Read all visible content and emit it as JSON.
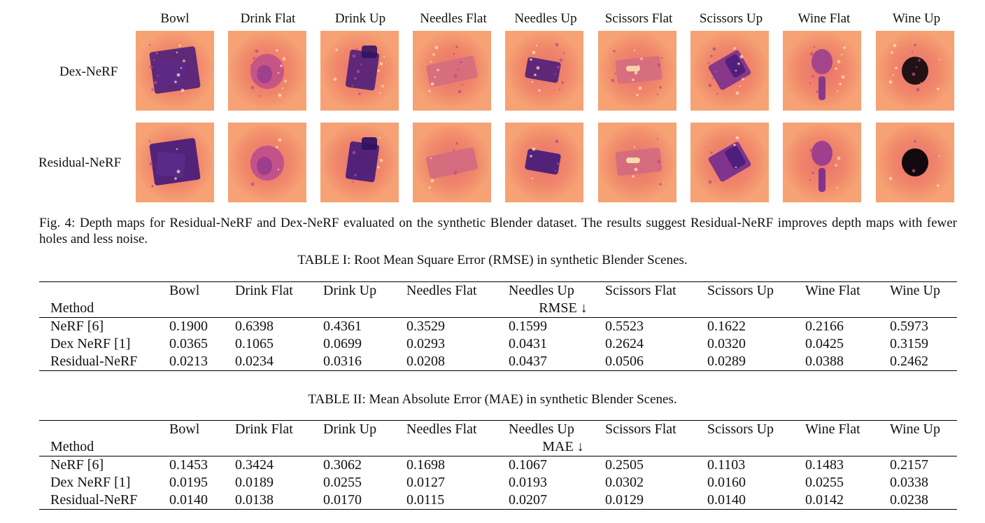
{
  "figure": {
    "scenes": [
      "Bowl",
      "Drink Flat",
      "Drink Up",
      "Needles Flat",
      "Needles Up",
      "Scissors Flat",
      "Scissors Up",
      "Wine Flat",
      "Wine Up"
    ],
    "rows": [
      "Dex-NeRF",
      "Residual-NeRF"
    ],
    "colors": {
      "background": "#f0876a",
      "mid": "#c0508a",
      "deep": "#4a1d7a",
      "hole": "#050308",
      "highlight": "#fbe0b0"
    },
    "caption": "Fig. 4: Depth maps for Residual-NeRF and Dex-NeRF evaluated on the synthetic Blender dataset. The results suggest Residual-NeRF improves depth maps with fewer holes and less noise."
  },
  "table1": {
    "caption": "TABLE I: Root Mean Square Error (RMSE) in synthetic Blender Scenes.",
    "method_header": "Method",
    "metric_label": "RMSE ↓",
    "columns": [
      "Bowl",
      "Drink Flat",
      "Drink Up",
      "Needles Flat",
      "Needles Up",
      "Scissors Flat",
      "Scissors Up",
      "Wine Flat",
      "Wine Up"
    ],
    "rows": [
      {
        "method": "NeRF [6]",
        "values": [
          "0.1900",
          "0.6398",
          "0.4361",
          "0.3529",
          "0.1599",
          "0.5523",
          "0.1622",
          "0.2166",
          "0.5973"
        ],
        "bold": [
          false,
          false,
          false,
          false,
          false,
          false,
          false,
          false,
          false
        ]
      },
      {
        "method": "Dex NeRF [1]",
        "values": [
          "0.0365",
          "0.1065",
          "0.0699",
          "0.0293",
          "0.0431",
          "0.2624",
          "0.0320",
          "0.0425",
          "0.3159"
        ],
        "bold": [
          false,
          false,
          false,
          false,
          true,
          false,
          false,
          false,
          false
        ]
      },
      {
        "method": "Residual-NeRF",
        "values": [
          "0.0213",
          "0.0234",
          "0.0316",
          "0.0208",
          "0.0437",
          "0.0506",
          "0.0289",
          "0.0388",
          "0.2462"
        ],
        "bold": [
          true,
          true,
          true,
          true,
          false,
          true,
          true,
          true,
          true
        ]
      }
    ]
  },
  "table2": {
    "caption": "TABLE II: Mean Absolute Error (MAE) in synthetic Blender Scenes.",
    "method_header": "Method",
    "metric_label": "MAE ↓",
    "columns": [
      "Bowl",
      "Drink Flat",
      "Drink Up",
      "Needles Flat",
      "Needles Up",
      "Scissors Flat",
      "Scissors Up",
      "Wine Flat",
      "Wine Up"
    ],
    "rows": [
      {
        "method": "NeRF [6]",
        "values": [
          "0.1453",
          "0.3424",
          "0.3062",
          "0.1698",
          "0.1067",
          "0.2505",
          "0.1103",
          "0.1483",
          "0.2157"
        ],
        "bold": [
          false,
          false,
          false,
          false,
          false,
          false,
          false,
          false,
          false
        ]
      },
      {
        "method": "Dex NeRF [1]",
        "values": [
          "0.0195",
          "0.0189",
          "0.0255",
          "0.0127",
          "0.0193",
          "0.0302",
          "0.0160",
          "0.0255",
          "0.0338"
        ],
        "bold": [
          false,
          false,
          false,
          false,
          true,
          false,
          false,
          false,
          false
        ]
      },
      {
        "method": "Residual-NeRF",
        "values": [
          "0.0140",
          "0.0138",
          "0.0170",
          "0.0115",
          "0.0207",
          "0.0129",
          "0.0140",
          "0.0142",
          "0.0238"
        ],
        "bold": [
          true,
          true,
          true,
          true,
          false,
          true,
          true,
          true,
          true
        ]
      }
    ]
  }
}
